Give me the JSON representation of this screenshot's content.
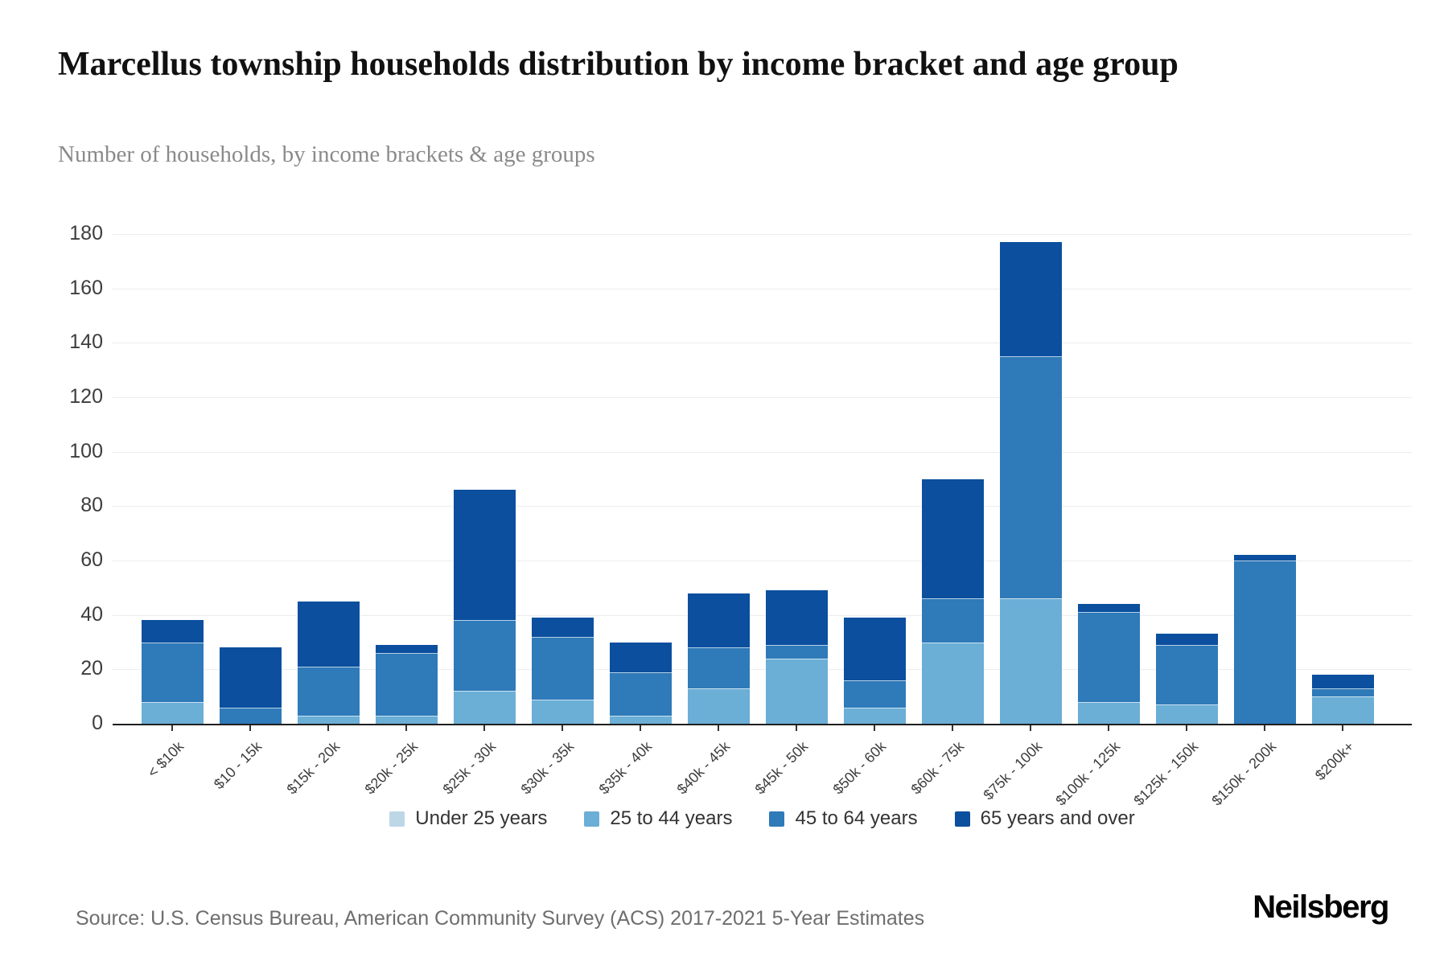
{
  "header": {
    "title": "Marcellus township households distribution by income bracket and age group",
    "subtitle": "Number of households, by income brackets & age groups"
  },
  "footer": {
    "source": "Source: U.S. Census Bureau, American Community Survey (ACS) 2017-2021 5-Year Estimates",
    "brand": "Neilsberg"
  },
  "colors": {
    "under_25": "#bdd7e7",
    "age_25_44": "#6baed6",
    "age_45_64": "#2f7ab8",
    "age_65_over": "#0b4f9e",
    "gridline": "#ececec",
    "axis": "#1f1f1f"
  },
  "chart_data": {
    "type": "bar",
    "variant": "stacked",
    "title": "Marcellus township households distribution by income bracket and age group",
    "xlabel": "",
    "ylabel": "Number of households",
    "ylim": [
      0,
      180
    ],
    "yticks": [
      0,
      20,
      40,
      60,
      80,
      100,
      120,
      140,
      160,
      180
    ],
    "grid": true,
    "legend_position": "bottom",
    "categories": [
      "< $10k",
      "$10 - 15k",
      "$15k - 20k",
      "$20k - 25k",
      "$25k - 30k",
      "$30k - 35k",
      "$35k - 40k",
      "$40k - 45k",
      "$45k - 50k",
      "$50k - 60k",
      "$60k - 75k",
      "$75k - 100k",
      "$100k - 125k",
      "$125k - 150k",
      "$150k - 200k",
      "$200k+"
    ],
    "series": [
      {
        "name": "Under 25 years",
        "color": "#bdd7e7",
        "values": [
          0,
          0,
          0,
          0,
          0,
          0,
          0,
          0,
          0,
          0,
          0,
          0,
          0,
          0,
          0,
          0
        ]
      },
      {
        "name": "25 to 44 years",
        "color": "#6baed6",
        "values": [
          8,
          0,
          3,
          3,
          12,
          9,
          3,
          13,
          24,
          6,
          30,
          46,
          8,
          7,
          0,
          10
        ]
      },
      {
        "name": "45 to 64 years",
        "color": "#2f7ab8",
        "values": [
          22,
          6,
          18,
          23,
          26,
          23,
          16,
          15,
          5,
          10,
          16,
          89,
          33,
          22,
          60,
          3
        ]
      },
      {
        "name": "65 years and over",
        "color": "#0b4f9e",
        "values": [
          8,
          22,
          24,
          3,
          48,
          7,
          11,
          20,
          20,
          23,
          44,
          42,
          3,
          4,
          2,
          5
        ]
      }
    ],
    "totals": [
      38,
      28,
      45,
      29,
      86,
      39,
      30,
      48,
      49,
      39,
      90,
      177,
      44,
      33,
      62,
      18
    ]
  }
}
